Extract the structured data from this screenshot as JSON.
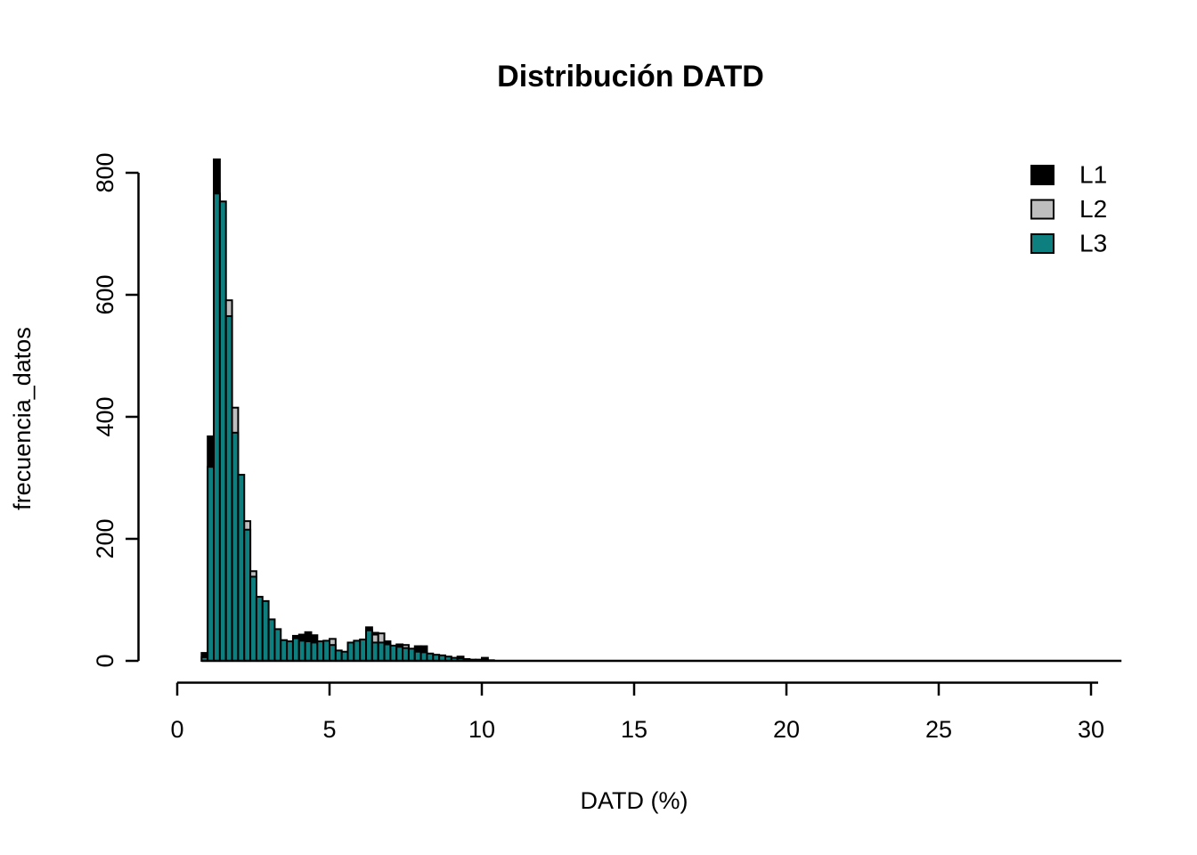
{
  "page": {
    "background_color": "#FFFFFF"
  },
  "chart_data": {
    "type": "bar",
    "subtype": "overlaid-histograms",
    "title": "Distribución DATD",
    "xlabel": "DATD (%)",
    "ylabel": "frecuencia_datos",
    "xlim": [
      0,
      31
    ],
    "ylim": [
      0,
      800
    ],
    "x_ticks": [
      0,
      5,
      10,
      15,
      20,
      25,
      30
    ],
    "y_ticks": [
      0,
      200,
      400,
      600,
      800
    ],
    "grid": false,
    "bin_width": 0.2,
    "baseline_extent": [
      0.8,
      31
    ],
    "colors": {
      "L1": "#000000",
      "L2": "#BEBEBE",
      "L3": "#0E7F7F",
      "bar_border": "#000000"
    },
    "legend_position": "topright",
    "legend": [
      {
        "label": "L1",
        "series": "L1"
      },
      {
        "label": "L2",
        "series": "L2"
      },
      {
        "label": "L3",
        "series": "L3"
      }
    ],
    "bin_format": [
      "x_start",
      "L1_count",
      "L2_count",
      "L3_count"
    ],
    "bins": [
      [
        0.8,
        13,
        0,
        6
      ],
      [
        1.0,
        368,
        0,
        318
      ],
      [
        1.2,
        822,
        0,
        766
      ],
      [
        1.4,
        0,
        0,
        753
      ],
      [
        1.6,
        0,
        591,
        565
      ],
      [
        1.8,
        0,
        415,
        374
      ],
      [
        2.0,
        0,
        0,
        305
      ],
      [
        2.2,
        0,
        229,
        215
      ],
      [
        2.4,
        0,
        147,
        138
      ],
      [
        2.6,
        0,
        0,
        105
      ],
      [
        2.8,
        0,
        0,
        98
      ],
      [
        3.0,
        0,
        0,
        68
      ],
      [
        3.2,
        0,
        0,
        52
      ],
      [
        3.4,
        0,
        0,
        34
      ],
      [
        3.6,
        0,
        0,
        32
      ],
      [
        3.8,
        41,
        0,
        37
      ],
      [
        4.0,
        43,
        0,
        33
      ],
      [
        4.2,
        47,
        0,
        32
      ],
      [
        4.4,
        42,
        0,
        30
      ],
      [
        4.6,
        0,
        0,
        32
      ],
      [
        4.8,
        0,
        0,
        33
      ],
      [
        5.0,
        0,
        36,
        26
      ],
      [
        5.2,
        0,
        0,
        17
      ],
      [
        5.4,
        0,
        0,
        15
      ],
      [
        5.6,
        0,
        0,
        30
      ],
      [
        5.8,
        0,
        0,
        33
      ],
      [
        6.0,
        0,
        0,
        35
      ],
      [
        6.2,
        55,
        0,
        50
      ],
      [
        6.4,
        46,
        43,
        30
      ],
      [
        6.6,
        0,
        45,
        30
      ],
      [
        6.8,
        32,
        0,
        27
      ],
      [
        7.0,
        0,
        0,
        25
      ],
      [
        7.2,
        27,
        0,
        23
      ],
      [
        7.4,
        0,
        26,
        21
      ],
      [
        7.6,
        0,
        0,
        20
      ],
      [
        7.8,
        24,
        0,
        15
      ],
      [
        8.0,
        24,
        0,
        14
      ],
      [
        8.2,
        0,
        0,
        12
      ],
      [
        8.4,
        0,
        0,
        10
      ],
      [
        8.6,
        0,
        0,
        9
      ],
      [
        8.8,
        0,
        0,
        7
      ],
      [
        9.0,
        0,
        0,
        5
      ],
      [
        9.2,
        7,
        0,
        4
      ],
      [
        9.4,
        0,
        0,
        3
      ],
      [
        9.6,
        0,
        0,
        2
      ],
      [
        9.8,
        0,
        0,
        2
      ],
      [
        10.0,
        5,
        0,
        1
      ],
      [
        10.2,
        0,
        0,
        1
      ]
    ]
  }
}
